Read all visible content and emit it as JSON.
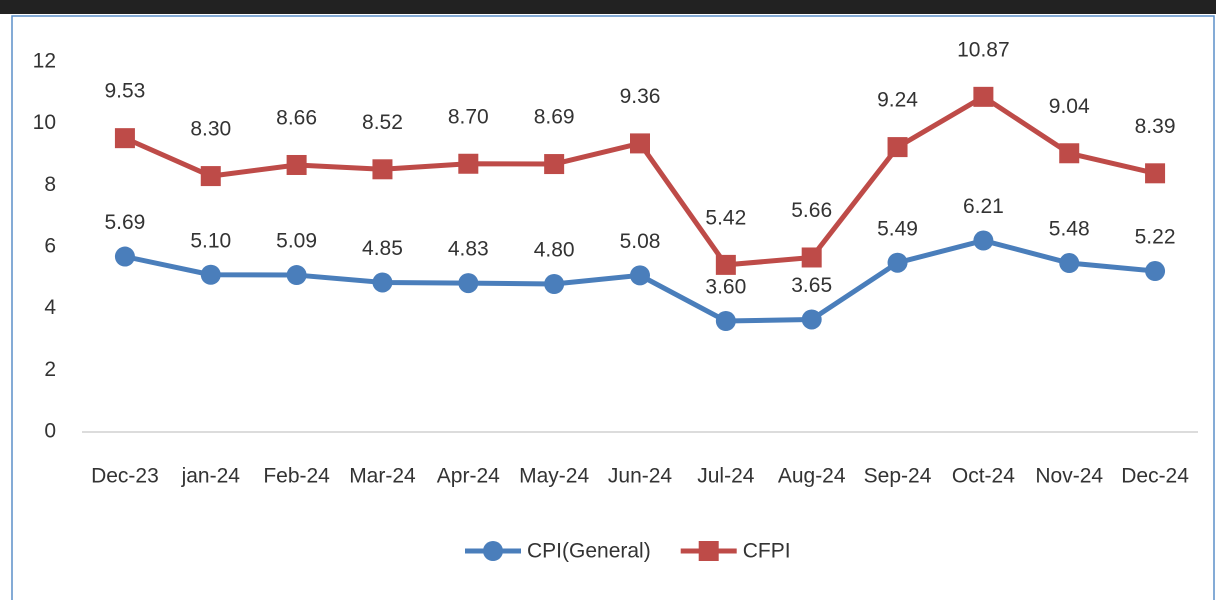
{
  "chart_data": {
    "type": "line",
    "categories": [
      "Dec-23",
      "jan-24",
      "Feb-24",
      "Mar-24",
      "Apr-24",
      "May-24",
      "Jun-24",
      "Jul-24",
      "Aug-24",
      "Sep-24",
      "Oct-24",
      "Nov-24",
      "Dec-24"
    ],
    "series": [
      {
        "name": "CPI(General)",
        "color": "#4a7ebb",
        "marker": "circle",
        "values": [
          5.69,
          5.1,
          5.09,
          4.85,
          4.83,
          4.8,
          5.08,
          3.6,
          3.65,
          5.49,
          6.21,
          5.48,
          5.22
        ],
        "value_labels": [
          "5.69",
          "5.10",
          "5.09",
          "4.85",
          "4.83",
          "4.80",
          "5.08",
          "3.60",
          "3.65",
          "5.49",
          "6.21",
          "5.48",
          "5.22"
        ]
      },
      {
        "name": "CFPI",
        "color": "#be4b48",
        "marker": "square",
        "values": [
          9.53,
          8.3,
          8.66,
          8.52,
          8.7,
          8.69,
          9.36,
          5.42,
          5.66,
          9.24,
          10.87,
          9.04,
          8.39
        ],
        "value_labels": [
          "9.53",
          "8.30",
          "8.66",
          "8.52",
          "8.70",
          "8.69",
          "9.36",
          "5.42",
          "5.66",
          "9.24",
          "10.87",
          "9.04",
          "8.39"
        ]
      }
    ],
    "ylim": [
      0,
      12
    ],
    "yticks": [
      0,
      2,
      4,
      6,
      8,
      10,
      12
    ],
    "grid": false,
    "legend": "bottom"
  }
}
